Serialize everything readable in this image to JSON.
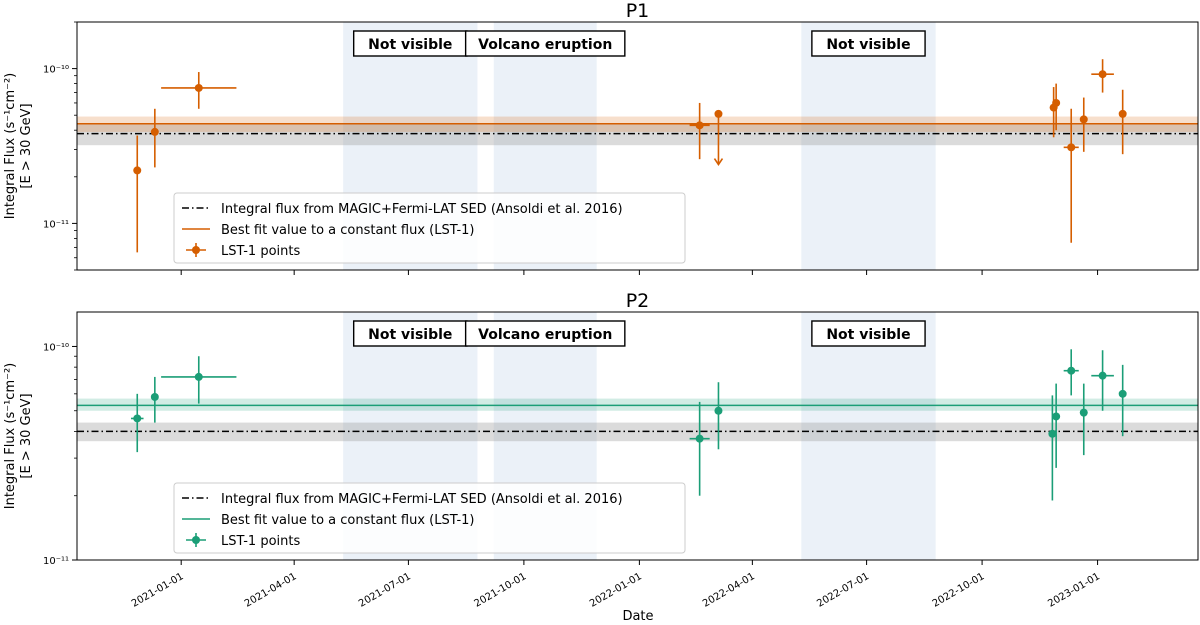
{
  "colors": {
    "p1": "#d55e00",
    "p2": "#1b9e77",
    "reference": "#000000",
    "reference_band": "#999999",
    "not_visible_band": "#dde7f4",
    "volcano_band": "#dde7f4"
  },
  "xlabel": "Date",
  "ylabel_line1": "Integral Flux (s⁻¹cm⁻²)",
  "ylabel_line2": "[E > 30 GeV]",
  "chart_data": [
    {
      "type": "scatter",
      "title": "P1",
      "color": "#d55e00",
      "xlabel": "",
      "ylabel": "Integral Flux (s⁻¹cm⁻²) [E > 30 GeV]",
      "yscale": "log",
      "ylim": [
        5e-12,
        2e-10
      ],
      "xlim": [
        "2020-10-10",
        "2023-03-22"
      ],
      "x_ticks": [
        "2021-01-01",
        "2021-04-01",
        "2021-07-01",
        "2021-10-01",
        "2022-01-01",
        "2022-04-01",
        "2022-07-01",
        "2022-10-01",
        "2023-01-01"
      ],
      "x_tick_labels": [],
      "y_ticks": [
        {
          "value": 1e-10,
          "label": "10⁻¹⁰"
        },
        {
          "value": 1e-11,
          "label": "10⁻¹¹"
        }
      ],
      "shaded_periods": [
        {
          "label": "Not visible",
          "start": "2021-05-10",
          "end": "2021-08-25"
        },
        {
          "label": "Volcano eruption",
          "start": "2021-09-07",
          "end": "2021-11-28"
        },
        {
          "label": "Not visible",
          "start": "2022-05-10",
          "end": "2022-08-25"
        }
      ],
      "reference_line": {
        "name": "Integral flux from MAGIC+Fermi-LAT SED (Ansoldi et al. 2016)",
        "value": 3.8e-11,
        "band": [
          3.2e-11,
          4.4e-11
        ]
      },
      "fit_line": {
        "name": "Best fit value to a constant flux (LST-1)",
        "value": 4.4e-11,
        "band": [
          3.9e-11,
          4.9e-11
        ]
      },
      "series": [
        {
          "name": "LST-1 points",
          "points": [
            {
              "x": "2020-11-27",
              "x_lo": "2020-11-27",
              "x_hi": "2020-11-27",
              "y": 2.2e-11,
              "y_lo": 6.5e-12,
              "y_hi": 3.7e-11
            },
            {
              "x": "2020-12-11",
              "x_lo": "2020-12-09",
              "x_hi": "2020-12-13",
              "y": 3.9e-11,
              "y_lo": 2.3e-11,
              "y_hi": 5.5e-11
            },
            {
              "x": "2021-01-15",
              "x_lo": "2020-12-16",
              "x_hi": "2021-02-14",
              "y": 7.5e-11,
              "y_lo": 5.5e-11,
              "y_hi": 9.5e-11
            },
            {
              "x": "2022-02-18",
              "x_lo": "2022-02-10",
              "x_hi": "2022-02-26",
              "y": 4.3e-11,
              "y_lo": 2.6e-11,
              "y_hi": 6e-11
            },
            {
              "x": "2022-03-05",
              "x_lo": "2022-03-05",
              "x_hi": "2022-03-05",
              "y": 5.1e-11,
              "y_lo": 2.4e-11,
              "y_hi": 5.1e-11,
              "upper_limit": true
            },
            {
              "x": "2022-11-27",
              "x_lo": "2022-11-27",
              "x_hi": "2022-11-27",
              "y": 5.6e-11,
              "y_lo": 3.6e-11,
              "y_hi": 7.6e-11
            },
            {
              "x": "2022-11-29",
              "x_lo": "2022-11-29",
              "x_hi": "2022-11-29",
              "y": 6e-11,
              "y_lo": 4e-11,
              "y_hi": 8e-11
            },
            {
              "x": "2022-12-11",
              "x_lo": "2022-12-05",
              "x_hi": "2022-12-17",
              "y": 3.1e-11,
              "y_lo": 7.5e-12,
              "y_hi": 5.5e-11
            },
            {
              "x": "2022-12-21",
              "x_lo": "2022-12-21",
              "x_hi": "2022-12-21",
              "y": 4.7e-11,
              "y_lo": 2.9e-11,
              "y_hi": 6.5e-11
            },
            {
              "x": "2023-01-05",
              "x_lo": "2022-12-27",
              "x_hi": "2023-01-14",
              "y": 9.2e-11,
              "y_lo": 7e-11,
              "y_hi": 1.15e-10
            },
            {
              "x": "2023-01-21",
              "x_lo": "2023-01-21",
              "x_hi": "2023-01-21",
              "y": 5.1e-11,
              "y_lo": 2.8e-11,
              "y_hi": 7.3e-11
            }
          ]
        }
      ]
    },
    {
      "type": "scatter",
      "title": "P2",
      "color": "#1b9e77",
      "xlabel": "Date",
      "ylabel": "Integral Flux (s⁻¹cm⁻²) [E > 30 GeV]",
      "yscale": "log",
      "ylim": [
        1e-11,
        1.45e-10
      ],
      "xlim": [
        "2020-10-10",
        "2023-03-22"
      ],
      "x_ticks": [
        "2021-01-01",
        "2021-04-01",
        "2021-07-01",
        "2021-10-01",
        "2022-01-01",
        "2022-04-01",
        "2022-07-01",
        "2022-10-01",
        "2023-01-01"
      ],
      "x_tick_labels": [
        "2021-01-01",
        "2021-04-01",
        "2021-07-01",
        "2021-10-01",
        "2022-01-01",
        "2022-04-01",
        "2022-07-01",
        "2022-10-01",
        "2023-01-01"
      ],
      "y_ticks": [
        {
          "value": 1e-10,
          "label": "10⁻¹⁰"
        },
        {
          "value": 1e-11,
          "label": "10⁻¹¹"
        }
      ],
      "shaded_periods": [
        {
          "label": "Not visible",
          "start": "2021-05-10",
          "end": "2021-08-25"
        },
        {
          "label": "Volcano eruption",
          "start": "2021-09-07",
          "end": "2021-11-28"
        },
        {
          "label": "Not visible",
          "start": "2022-05-10",
          "end": "2022-08-25"
        }
      ],
      "reference_line": {
        "name": "Integral flux from MAGIC+Fermi-LAT SED (Ansoldi et al. 2016)",
        "value": 4e-11,
        "band": [
          3.6e-11,
          4.4e-11
        ]
      },
      "fit_line": {
        "name": "Best fit value to a constant flux (LST-1)",
        "value": 5.3e-11,
        "band": [
          5e-11,
          5.7e-11
        ]
      },
      "series": [
        {
          "name": "LST-1 points",
          "points": [
            {
              "x": "2020-11-27",
              "x_lo": "2020-11-22",
              "x_hi": "2020-12-02",
              "y": 4.6e-11,
              "y_lo": 3.2e-11,
              "y_hi": 6e-11
            },
            {
              "x": "2020-12-11",
              "x_lo": "2020-12-09",
              "x_hi": "2020-12-13",
              "y": 5.8e-11,
              "y_lo": 4.4e-11,
              "y_hi": 7.2e-11
            },
            {
              "x": "2021-01-15",
              "x_lo": "2020-12-16",
              "x_hi": "2021-02-14",
              "y": 7.2e-11,
              "y_lo": 5.4e-11,
              "y_hi": 9e-11
            },
            {
              "x": "2022-02-18",
              "x_lo": "2022-02-10",
              "x_hi": "2022-02-26",
              "y": 3.7e-11,
              "y_lo": 2e-11,
              "y_hi": 5.5e-11
            },
            {
              "x": "2022-03-05",
              "x_lo": "2022-03-05",
              "x_hi": "2022-03-05",
              "y": 5e-11,
              "y_lo": 3.3e-11,
              "y_hi": 6.8e-11
            },
            {
              "x": "2022-11-26",
              "x_lo": "2022-11-26",
              "x_hi": "2022-11-26",
              "y": 3.9e-11,
              "y_lo": 1.9e-11,
              "y_hi": 5.9e-11
            },
            {
              "x": "2022-11-29",
              "x_lo": "2022-11-29",
              "x_hi": "2022-11-29",
              "y": 4.7e-11,
              "y_lo": 2.7e-11,
              "y_hi": 6.7e-11
            },
            {
              "x": "2022-12-11",
              "x_lo": "2022-12-05",
              "x_hi": "2022-12-17",
              "y": 7.7e-11,
              "y_lo": 5.9e-11,
              "y_hi": 9.7e-11
            },
            {
              "x": "2022-12-21",
              "x_lo": "2022-12-21",
              "x_hi": "2022-12-21",
              "y": 4.9e-11,
              "y_lo": 3.1e-11,
              "y_hi": 6.7e-11
            },
            {
              "x": "2023-01-05",
              "x_lo": "2022-12-27",
              "x_hi": "2023-01-14",
              "y": 7.3e-11,
              "y_lo": 5e-11,
              "y_hi": 9.6e-11
            },
            {
              "x": "2023-01-21",
              "x_lo": "2023-01-21",
              "x_hi": "2023-01-21",
              "y": 6e-11,
              "y_lo": 3.8e-11,
              "y_hi": 8.2e-11
            }
          ]
        }
      ]
    }
  ]
}
